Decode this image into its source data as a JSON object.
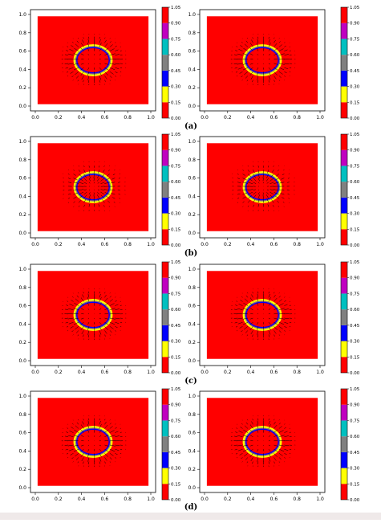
{
  "panel_labels": [
    "(a)",
    "(b)",
    "(c)",
    "(d)"
  ],
  "colorbar": {
    "ticks": [
      "0.00",
      "0.15",
      "0.30",
      "0.45",
      "0.60",
      "0.75",
      "0.90",
      "1.05"
    ],
    "bands": [
      "#ff0000",
      "#ffff00",
      "#0000ff",
      "#808080",
      "#00c0c0",
      "#c000c0",
      "#ff0000"
    ]
  },
  "colors": {
    "field": "#ff0000",
    "arrows": "#000000",
    "ring_inner": "#0000ff",
    "ring_outer": "#ffff00",
    "ring_mid": "#808080"
  },
  "chart_data": [
    {
      "type": "heatmap",
      "panel": "(a) left",
      "xticks": [
        "0.0",
        "0.2",
        "0.4",
        "0.6",
        "0.8",
        "1.0"
      ],
      "yticks": [
        "0.0",
        "0.2",
        "0.4",
        "0.6",
        "0.8",
        "1.0"
      ],
      "xlim": [
        0,
        1
      ],
      "ylim": [
        0,
        1
      ],
      "field_value": 0.0,
      "interface": {
        "cx": 0.5,
        "cy": 0.5,
        "r": 0.15
      },
      "arrow_style": "outward"
    },
    {
      "type": "heatmap",
      "panel": "(a) right",
      "xticks": [
        "0.0",
        "0.2",
        "0.4",
        "0.6",
        "0.8",
        "1.0"
      ],
      "yticks": [
        "0.0",
        "0.2",
        "0.4",
        "0.6",
        "0.8",
        "1.0"
      ],
      "xlim": [
        0,
        1
      ],
      "ylim": [
        0,
        1
      ],
      "field_value": 0.0,
      "interface": {
        "cx": 0.5,
        "cy": 0.5,
        "r": 0.15
      },
      "arrow_style": "outward"
    },
    {
      "type": "heatmap",
      "panel": "(b) left",
      "xticks": [
        "0.0",
        "0.2",
        "0.4",
        "0.6",
        "0.8",
        "1.0"
      ],
      "yticks": [
        "0.0",
        "0.2",
        "0.4",
        "0.6",
        "0.8",
        "1.0"
      ],
      "xlim": [
        0,
        1
      ],
      "ylim": [
        0,
        1
      ],
      "field_value": 0.0,
      "interface": {
        "cx": 0.5,
        "cy": 0.5,
        "r": 0.15
      },
      "arrow_style": "inward"
    },
    {
      "type": "heatmap",
      "panel": "(b) right",
      "xticks": [
        "0.0",
        "0.2",
        "0.4",
        "0.6",
        "0.8",
        "1.0"
      ],
      "yticks": [
        "0.0",
        "0.2",
        "0.4",
        "0.6",
        "0.8",
        "1.0"
      ],
      "xlim": [
        0,
        1
      ],
      "ylim": [
        0,
        1
      ],
      "field_value": 0.0,
      "interface": {
        "cx": 0.5,
        "cy": 0.5,
        "r": 0.15
      },
      "arrow_style": "inward"
    },
    {
      "type": "heatmap",
      "panel": "(c) left",
      "xticks": [
        "0.0",
        "0.2",
        "0.4",
        "0.6",
        "0.8",
        "1.0"
      ],
      "yticks": [
        "0.0",
        "0.2",
        "0.4",
        "0.6",
        "0.8",
        "1.0"
      ],
      "xlim": [
        0,
        1
      ],
      "ylim": [
        0,
        1
      ],
      "field_value": 0.0,
      "interface": {
        "cx": 0.5,
        "cy": 0.5,
        "r": 0.15
      },
      "arrow_style": "outward"
    },
    {
      "type": "heatmap",
      "panel": "(c) right",
      "xticks": [
        "0.0",
        "0.2",
        "0.4",
        "0.6",
        "0.8",
        "1.0"
      ],
      "yticks": [
        "0.0",
        "0.2",
        "0.4",
        "0.6",
        "0.8",
        "1.0"
      ],
      "xlim": [
        0,
        1
      ],
      "ylim": [
        0,
        1
      ],
      "field_value": 0.0,
      "interface": {
        "cx": 0.5,
        "cy": 0.5,
        "r": 0.15
      },
      "arrow_style": "outward"
    },
    {
      "type": "heatmap",
      "panel": "(d) left",
      "xticks": [
        "0.0",
        "0.2",
        "0.4",
        "0.6",
        "0.8",
        "1.0"
      ],
      "yticks": [
        "0.0",
        "0.2",
        "0.4",
        "0.6",
        "0.8",
        "1.0"
      ],
      "xlim": [
        0,
        1
      ],
      "ylim": [
        0,
        1
      ],
      "field_value": 0.0,
      "interface": {
        "cx": 0.5,
        "cy": 0.5,
        "r": 0.15
      },
      "arrow_style": "outward"
    },
    {
      "type": "heatmap",
      "panel": "(d) right",
      "xticks": [
        "0.0",
        "0.2",
        "0.4",
        "0.6",
        "0.8",
        "1.0"
      ],
      "yticks": [
        "0.0",
        "0.2",
        "0.4",
        "0.6",
        "0.8",
        "1.0"
      ],
      "xlim": [
        0,
        1
      ],
      "ylim": [
        0,
        1
      ],
      "field_value": 0.0,
      "interface": {
        "cx": 0.5,
        "cy": 0.5,
        "r": 0.15
      },
      "arrow_style": "outward"
    }
  ]
}
